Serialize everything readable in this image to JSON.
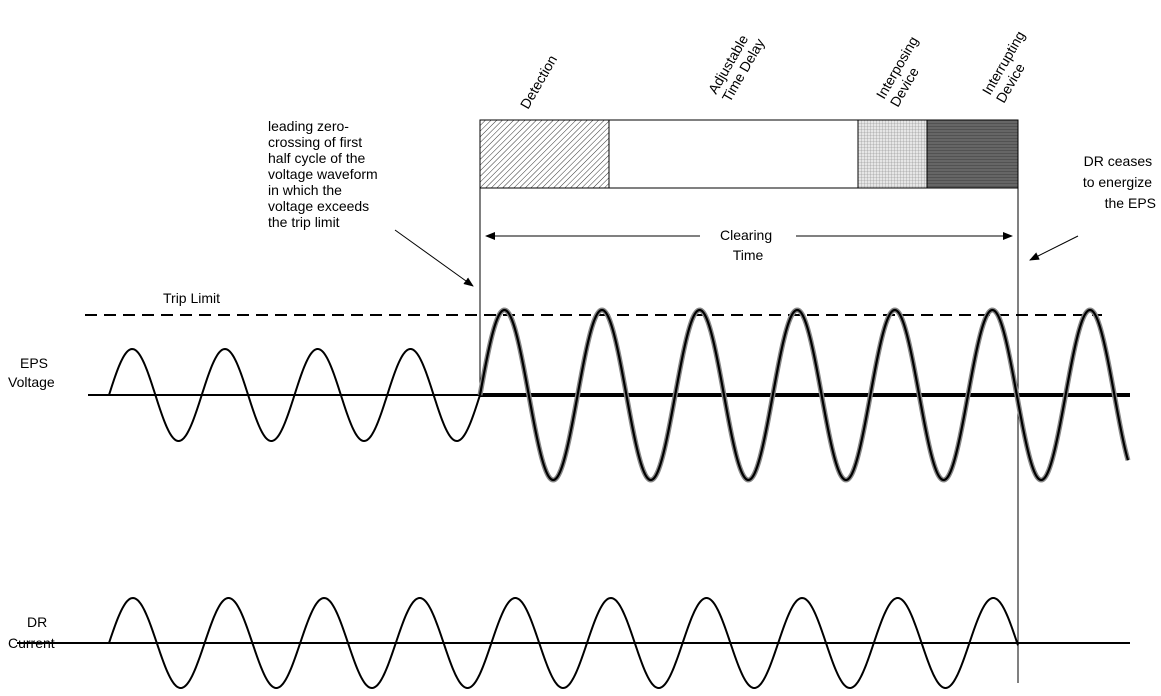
{
  "stages": [
    {
      "name": "detection",
      "label_lines": [
        "Detection"
      ],
      "pattern": "diagonal-hatch"
    },
    {
      "name": "time-delay",
      "label_lines": [
        "Adjustable",
        "Time Delay"
      ],
      "pattern": "none"
    },
    {
      "name": "interposing-device",
      "label_lines": [
        "Interposing",
        "Device"
      ],
      "pattern": "fine-grid"
    },
    {
      "name": "interrupting-device",
      "label_lines": [
        "Interrupting",
        "Device"
      ],
      "pattern": "dark-fill"
    }
  ],
  "annotations": {
    "zero_crossing_lines": [
      "leading zero-",
      "crossing of first",
      "half cycle of the",
      "voltage waveform",
      "in which the",
      "voltage exceeds",
      "the trip limit"
    ],
    "dr_ceases_lines": [
      "DR ceases",
      "to energize",
      "the EPS"
    ],
    "clearing_time_lines": [
      "Clearing",
      "Time"
    ],
    "trip_limit": "Trip Limit"
  },
  "signals": {
    "eps_voltage_lines": [
      "EPS",
      "Voltage"
    ],
    "dr_current_lines": [
      "DR",
      "Current"
    ]
  },
  "colors": {
    "ink": "#000000",
    "dark_fill": "#555555",
    "grid_fill": "#bbbbbb",
    "waveform_shadow": "#888888"
  }
}
